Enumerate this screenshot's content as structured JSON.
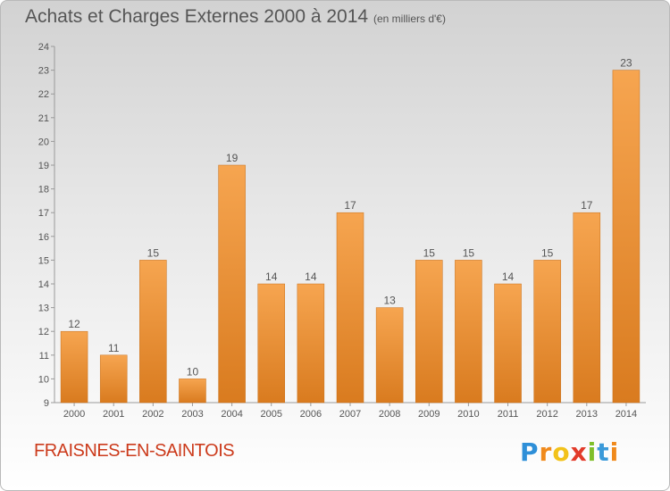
{
  "header": {
    "title": "Achats et Charges Externes 2000 à 2014",
    "subtitle": "(en milliers d'€)"
  },
  "footer": {
    "commune": "FRAISNES-EN-SAINTOIS",
    "brand_letters": [
      "P",
      "r",
      "o",
      "x",
      "i",
      "t",
      "i"
    ],
    "brand_colors": [
      "#2e8fd8",
      "#f08a1c",
      "#f2c21a",
      "#e23b2a",
      "#7fbf2a",
      "#3b9ad9",
      "#f08a1c"
    ]
  },
  "colors": {
    "bar_light": "#f6a550",
    "bar_dark": "#d97b1f",
    "text": "#555555",
    "commune": "#cc3b1c"
  },
  "chart_data": {
    "type": "bar",
    "title": "Achats et Charges Externes 2000 à 2014",
    "subtitle": "(en milliers d'€)",
    "categories": [
      "2000",
      "2001",
      "2002",
      "2003",
      "2004",
      "2005",
      "2006",
      "2007",
      "2008",
      "2009",
      "2010",
      "2011",
      "2012",
      "2013",
      "2014"
    ],
    "values": [
      12,
      11,
      15,
      10,
      19,
      14,
      14,
      17,
      13,
      15,
      15,
      14,
      15,
      17,
      23
    ],
    "data_labels": [
      "12",
      "11",
      "15",
      "10",
      "19",
      "14",
      "14",
      "17",
      "13",
      "15",
      "15",
      "14",
      "15",
      "17",
      "23"
    ],
    "yticks": [
      "9",
      "10",
      "11",
      "12",
      "13",
      "14",
      "15",
      "16",
      "17",
      "18",
      "19",
      "20",
      "21",
      "22",
      "23",
      "24"
    ],
    "ylim": [
      9,
      24
    ],
    "xlabel": "",
    "ylabel": "",
    "grid": false,
    "legend": "none"
  }
}
